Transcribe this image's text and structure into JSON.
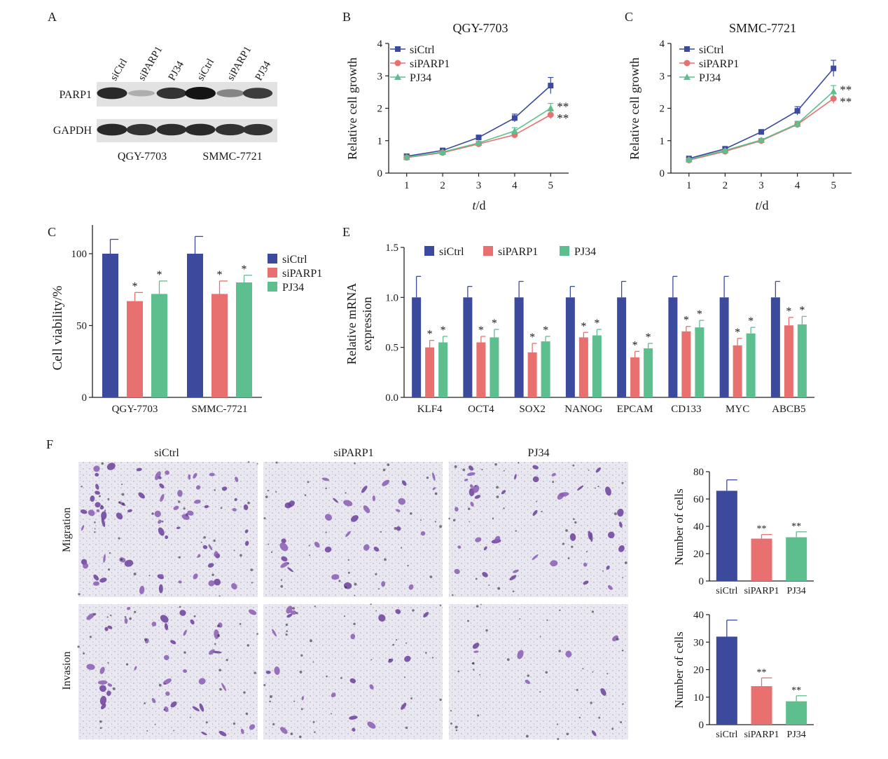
{
  "colors": {
    "siCtrl": "#3c4a9e",
    "siPARP1": "#e8706f",
    "PJ34": "#5dbf8e"
  },
  "panel_letters": [
    "A",
    "B",
    "C",
    "C",
    "E",
    "F"
  ],
  "groups": [
    "siCtrl",
    "siPARP1",
    "PJ34"
  ],
  "western": {
    "lane_labels": [
      "siCtrl",
      "siPARP1",
      "PJ34",
      "siCtrl",
      "siPARP1",
      "PJ34"
    ],
    "row_labels": [
      "PARP1",
      "GAPDH"
    ],
    "cell_lines": [
      "QGY-7703",
      "SMMC-7721"
    ],
    "band_intensity": {
      "PARP1": [
        0.9,
        0.25,
        0.85,
        1.0,
        0.45,
        0.8
      ],
      "GAPDH": [
        0.9,
        0.85,
        0.88,
        0.9,
        0.85,
        0.85
      ]
    }
  },
  "chart_data": [
    {
      "panel": "B",
      "type": "line",
      "title": "QGY-7703",
      "xlabel_italic": "t",
      "xlabel_rest": "/d",
      "ylabel": "Relative cell growth",
      "x": [
        1,
        2,
        3,
        4,
        5
      ],
      "xlim": [
        0.5,
        5.5
      ],
      "ylim": [
        0,
        4
      ],
      "xticks": [
        1,
        2,
        3,
        4,
        5
      ],
      "yticks": [
        0,
        1,
        2,
        3,
        4
      ],
      "series": [
        {
          "name": "siCtrl",
          "values": [
            0.52,
            0.7,
            1.1,
            1.7,
            2.7
          ],
          "err": [
            0.03,
            0.04,
            0.07,
            0.12,
            0.25
          ],
          "marker": "square"
        },
        {
          "name": "siPARP1",
          "values": [
            0.48,
            0.63,
            0.9,
            1.18,
            1.8
          ],
          "err": [
            0.03,
            0.03,
            0.05,
            0.08,
            0.12
          ],
          "marker": "circle"
        },
        {
          "name": "PJ34",
          "values": [
            0.49,
            0.65,
            0.93,
            1.3,
            2.0
          ],
          "err": [
            0.03,
            0.03,
            0.05,
            0.1,
            0.15
          ],
          "marker": "triangle"
        }
      ],
      "annotations": [
        "**",
        "**"
      ]
    },
    {
      "panel": "C",
      "type": "line",
      "title": "SMMC-7721",
      "xlabel_italic": "t",
      "xlabel_rest": "/d",
      "ylabel": "Relative cell growth",
      "x": [
        1,
        2,
        3,
        4,
        5
      ],
      "xlim": [
        0.5,
        5.5
      ],
      "ylim": [
        0,
        4
      ],
      "xticks": [
        1,
        2,
        3,
        4,
        5
      ],
      "yticks": [
        0,
        1,
        2,
        3,
        4
      ],
      "series": [
        {
          "name": "siCtrl",
          "values": [
            0.45,
            0.75,
            1.27,
            1.92,
            3.23
          ],
          "err": [
            0.03,
            0.04,
            0.07,
            0.13,
            0.25
          ],
          "marker": "square"
        },
        {
          "name": "siPARP1",
          "values": [
            0.4,
            0.67,
            1.0,
            1.5,
            2.3
          ],
          "err": [
            0.03,
            0.03,
            0.05,
            0.08,
            0.15
          ],
          "marker": "circle"
        },
        {
          "name": "PJ34",
          "values": [
            0.42,
            0.7,
            1.02,
            1.52,
            2.52
          ],
          "err": [
            0.03,
            0.03,
            0.05,
            0.08,
            0.18
          ],
          "marker": "triangle"
        }
      ],
      "annotations": [
        "**",
        "**"
      ]
    },
    {
      "panel": "C",
      "type": "bar",
      "ylabel": "Cell viability/%",
      "categories": [
        "QGY-7703",
        "SMMC-7721"
      ],
      "ylim": [
        0,
        120
      ],
      "yticks": [
        0,
        50,
        100
      ],
      "series": [
        {
          "name": "siCtrl",
          "values": [
            100,
            100
          ],
          "err": [
            10,
            12
          ],
          "sig": [
            "",
            ""
          ]
        },
        {
          "name": "siPARP1",
          "values": [
            67,
            72
          ],
          "err": [
            6,
            9
          ],
          "sig": [
            "*",
            "*"
          ]
        },
        {
          "name": "PJ34",
          "values": [
            72,
            80
          ],
          "err": [
            9,
            5
          ],
          "sig": [
            "*",
            "*"
          ]
        }
      ]
    },
    {
      "panel": "E",
      "type": "bar",
      "ylabel": "Relative mRNA expression",
      "ylabel_lines": [
        "Relative mRNA",
        "expression"
      ],
      "categories": [
        "KLF4",
        "OCT4",
        "SOX2",
        "NANOG",
        "EPCAM",
        "CD133",
        "MYC",
        "ABCB5"
      ],
      "ylim": [
        0,
        1.5
      ],
      "yticks": [
        "0.0",
        "0.5",
        "1.0",
        "1.5"
      ],
      "series": [
        {
          "name": "siCtrl",
          "values": [
            1,
            1,
            1,
            1,
            1,
            1,
            1,
            1
          ],
          "err": [
            0.21,
            0.11,
            0.16,
            0.11,
            0.16,
            0.21,
            0.21,
            0.16
          ],
          "sig": [
            "",
            "",
            "",
            "",
            "",
            "",
            "",
            ""
          ]
        },
        {
          "name": "siPARP1",
          "values": [
            0.5,
            0.55,
            0.45,
            0.6,
            0.4,
            0.66,
            0.52,
            0.72
          ],
          "err": [
            0.07,
            0.06,
            0.09,
            0.05,
            0.06,
            0.05,
            0.07,
            0.08
          ],
          "sig": [
            "*",
            "*",
            "*",
            "*",
            "*",
            "*",
            "*",
            "*"
          ]
        },
        {
          "name": "PJ34",
          "values": [
            0.55,
            0.6,
            0.56,
            0.62,
            0.49,
            0.7,
            0.64,
            0.73
          ],
          "err": [
            0.06,
            0.08,
            0.05,
            0.06,
            0.05,
            0.07,
            0.06,
            0.08
          ],
          "sig": [
            "*",
            "*",
            "*",
            "*",
            "*",
            "*",
            "*",
            "*"
          ]
        }
      ]
    },
    {
      "panel": "F-migration",
      "type": "bar",
      "ylabel": "Number of cells",
      "categories": [
        "siCtrl",
        "siPARP1",
        "PJ34"
      ],
      "ylim": [
        0,
        80
      ],
      "yticks": [
        0,
        20,
        40,
        60,
        80
      ],
      "values": [
        66,
        31,
        32
      ],
      "err": [
        8,
        3,
        4
      ],
      "sig": [
        "",
        "**",
        "**"
      ]
    },
    {
      "panel": "F-invasion",
      "type": "bar",
      "ylabel": "Number of cells",
      "categories": [
        "siCtrl",
        "siPARP1",
        "PJ34"
      ],
      "ylim": [
        0,
        40
      ],
      "yticks": [
        0,
        10,
        20,
        30,
        40
      ],
      "values": [
        32,
        14,
        8.5
      ],
      "err": [
        6,
        3,
        2
      ],
      "sig": [
        "",
        "**",
        "**"
      ]
    }
  ],
  "micrographs": {
    "columns": [
      "siCtrl",
      "siPARP1",
      "PJ34"
    ],
    "rows": [
      "Migration",
      "Invasion"
    ],
    "cell_density": [
      [
        1.0,
        0.45,
        0.6
      ],
      [
        0.6,
        0.3,
        0.12
      ]
    ]
  }
}
